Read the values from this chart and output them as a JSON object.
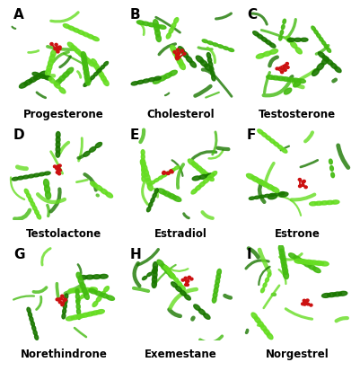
{
  "panels": [
    {
      "label": "A",
      "name": "Progesterone"
    },
    {
      "label": "B",
      "name": "Cholesterol"
    },
    {
      "label": "C",
      "name": "Testosterone"
    },
    {
      "label": "D",
      "name": "Testolactone"
    },
    {
      "label": "E",
      "name": "Estradiol"
    },
    {
      "label": "F",
      "name": "Estrone"
    },
    {
      "label": "G",
      "name": "Norethindrone"
    },
    {
      "label": "H",
      "name": "Exemestane"
    },
    {
      "label": "I",
      "name": "Norgestrel"
    }
  ],
  "bg_color": "#ffffff",
  "protein_color_light": "#66dd22",
  "protein_color_dark": "#1a7700",
  "protein_color_mid": "#44bb11",
  "ligand_color": "#cc1111",
  "name_fontsize": 8.5,
  "panel_label_fontsize": 11,
  "grid_rows": 3,
  "grid_cols": 3,
  "figure_width": 4.02,
  "figure_height": 4.13,
  "figure_dpi": 100
}
